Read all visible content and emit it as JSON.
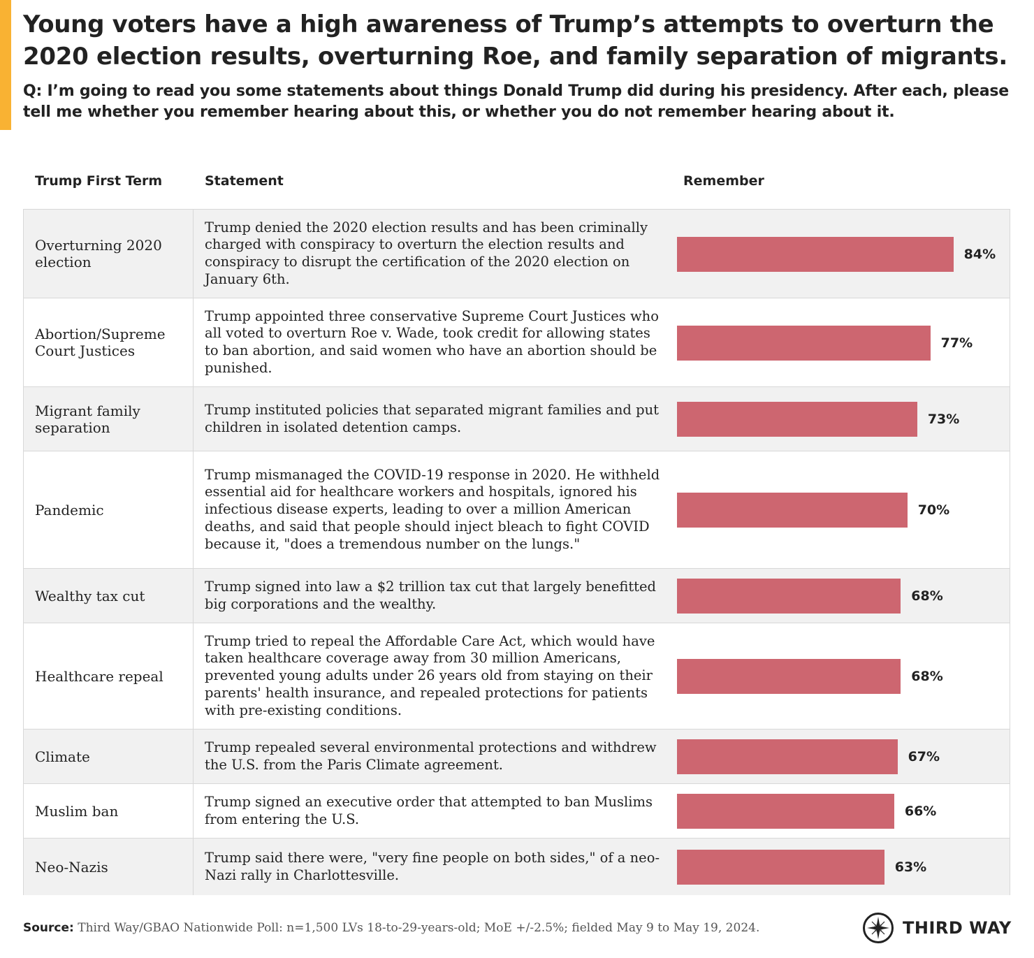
{
  "header": {
    "title": "Young voters have a high awareness of Trump’s attempts to overturn the 2020 election results, overturning Roe, and family separation of migrants.",
    "subtitle": "Q: I’m going to read you some statements about things Donald Trump did during his presidency. After each, please tell me whether you remember hearing about this, or whether you do not remember hearing about it."
  },
  "columns": {
    "term": "Trump First Term",
    "statement": "Statement",
    "remember": "Remember"
  },
  "colors": {
    "bar": "#cd6670",
    "accent": "#f9b233",
    "row_shade": "#f1f1f1"
  },
  "chart_data": {
    "type": "bar",
    "orientation": "horizontal",
    "title": "Remember",
    "categories": [
      "Overturning 2020 election",
      "Abortion/Supreme Court Justices",
      "Migrant family separation",
      "Pandemic",
      "Wealthy tax cut",
      "Healthcare repeal",
      "Climate",
      "Muslim ban",
      "Neo-Nazis"
    ],
    "values": [
      84,
      77,
      73,
      70,
      68,
      68,
      67,
      66,
      63
    ],
    "labels": [
      "84%",
      "77%",
      "73%",
      "70%",
      "68%",
      "68%",
      "67%",
      "66%",
      "63%"
    ],
    "statements": [
      "Trump denied the 2020 election results and has been criminally charged with conspiracy to overturn the election results and conspiracy to disrupt the certification of the 2020 election on January 6th.",
      "Trump appointed three conservative Supreme Court Justices who all voted to overturn Roe v. Wade, took credit for allowing states to ban abortion, and said women who have an abortion should be punished.",
      "Trump instituted policies that separated migrant families and put children in isolated detention camps.",
      "Trump mismanaged the COVID-19 response in 2020. He withheld essential aid for healthcare workers and hospitals, ignored his infectious disease experts, leading to over a million American deaths, and said that people should inject bleach to fight COVID because it, \"does a tremendous number on the lungs.\"",
      "Trump signed into law a $2 trillion tax cut that largely benefitted big corporations and the wealthy.",
      "Trump tried to repeal the Affordable Care Act, which would have taken healthcare coverage away from 30 million Americans, prevented young adults under 26 years old from staying on their parents' health insurance, and repealed protections for patients with pre-existing conditions.",
      "Trump repealed several environmental protections and withdrew the U.S. from the Paris Climate agreement.",
      "Trump signed an executive order that attempted to ban Muslims from entering the U.S.",
      "Trump said there were, \"very fine people on both sides,\" of a neo-Nazi rally in Charlottesville."
    ],
    "xlim": [
      0,
      100
    ],
    "xlabel": "",
    "ylabel": "",
    "grid": false
  },
  "footer": {
    "source_label": "Source:",
    "source_text": "Third Way/GBAO Nationwide Poll: n=1,500 LVs 18-to-29-years-old; MoE +/-2.5%; fielded May 9 to May 19, 2024.",
    "logo_text": "THIRD WAY",
    "logo_icon": "compass-star-icon"
  }
}
